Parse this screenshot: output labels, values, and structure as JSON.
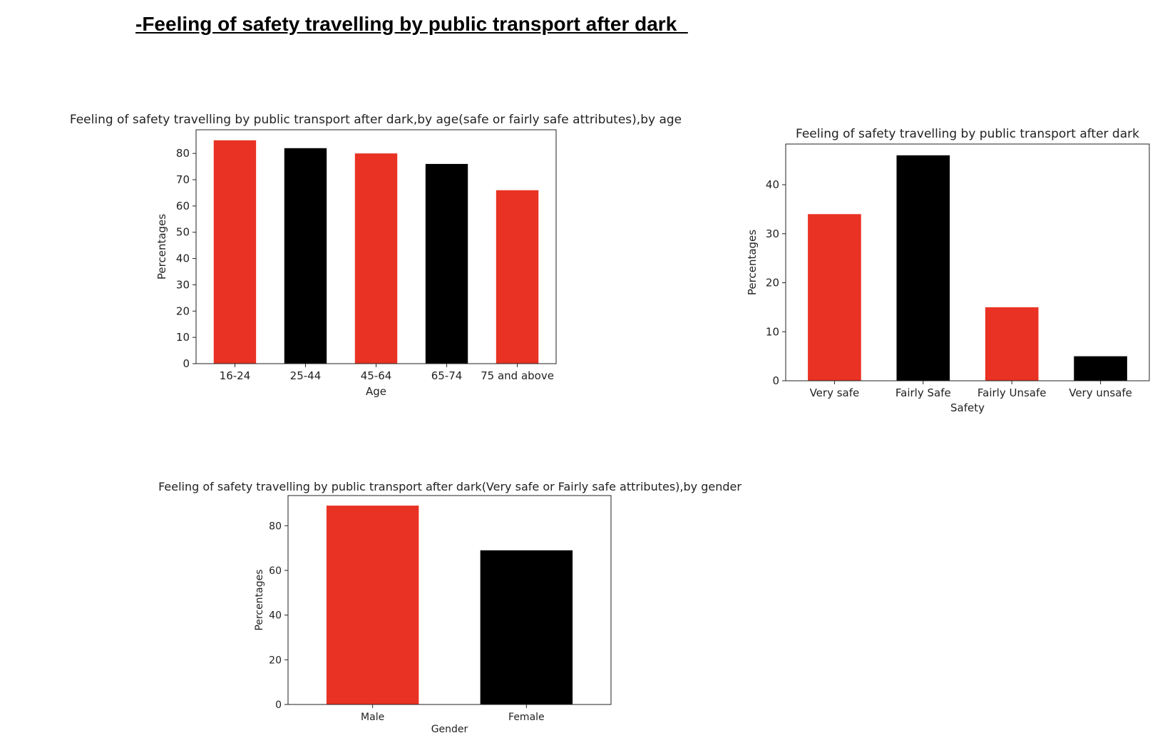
{
  "page": {
    "title": "-Feeling of safety travelling by public transport after dark  "
  },
  "colors": {
    "red": "#e93223",
    "black": "#000000"
  },
  "chart_data": [
    {
      "type": "bar",
      "title": "Feeling of safety travelling by public transport after dark,by age(safe or fairly safe attributes),by age",
      "xlabel": "Age",
      "ylabel": "Percentages",
      "categories": [
        "16-24",
        "25-44",
        "45-64",
        "65-74",
        "75 and above"
      ],
      "values": [
        85,
        82,
        80,
        76,
        66
      ],
      "bar_colors": [
        "#e93223",
        "#000000",
        "#e93223",
        "#000000",
        "#e93223"
      ],
      "ylim": [
        0,
        89
      ],
      "yticks": [
        0,
        10,
        20,
        30,
        40,
        50,
        60,
        70,
        80
      ],
      "grid": false
    },
    {
      "type": "bar",
      "title": "Feeling of safety travelling by public transport after dark",
      "xlabel": "Safety",
      "ylabel": "Percentages",
      "categories": [
        "Very safe",
        "Fairly Safe",
        "Fairly Unsafe",
        "Very unsafe"
      ],
      "values": [
        34,
        46,
        15,
        5
      ],
      "bar_colors": [
        "#e93223",
        "#000000",
        "#e93223",
        "#000000"
      ],
      "ylim": [
        0,
        48.3
      ],
      "yticks": [
        0,
        10,
        20,
        30,
        40
      ],
      "grid": false
    },
    {
      "type": "bar",
      "title": "Feeling of safety travelling by public transport after dark(Very safe or Fairly safe attributes),by gender",
      "xlabel": "Gender",
      "ylabel": "Percentages",
      "categories": [
        "Male",
        "Female"
      ],
      "values": [
        89,
        69
      ],
      "bar_colors": [
        "#e93223",
        "#000000"
      ],
      "ylim": [
        0,
        93.5
      ],
      "yticks": [
        0,
        20,
        40,
        60,
        80
      ],
      "grid": false
    }
  ]
}
